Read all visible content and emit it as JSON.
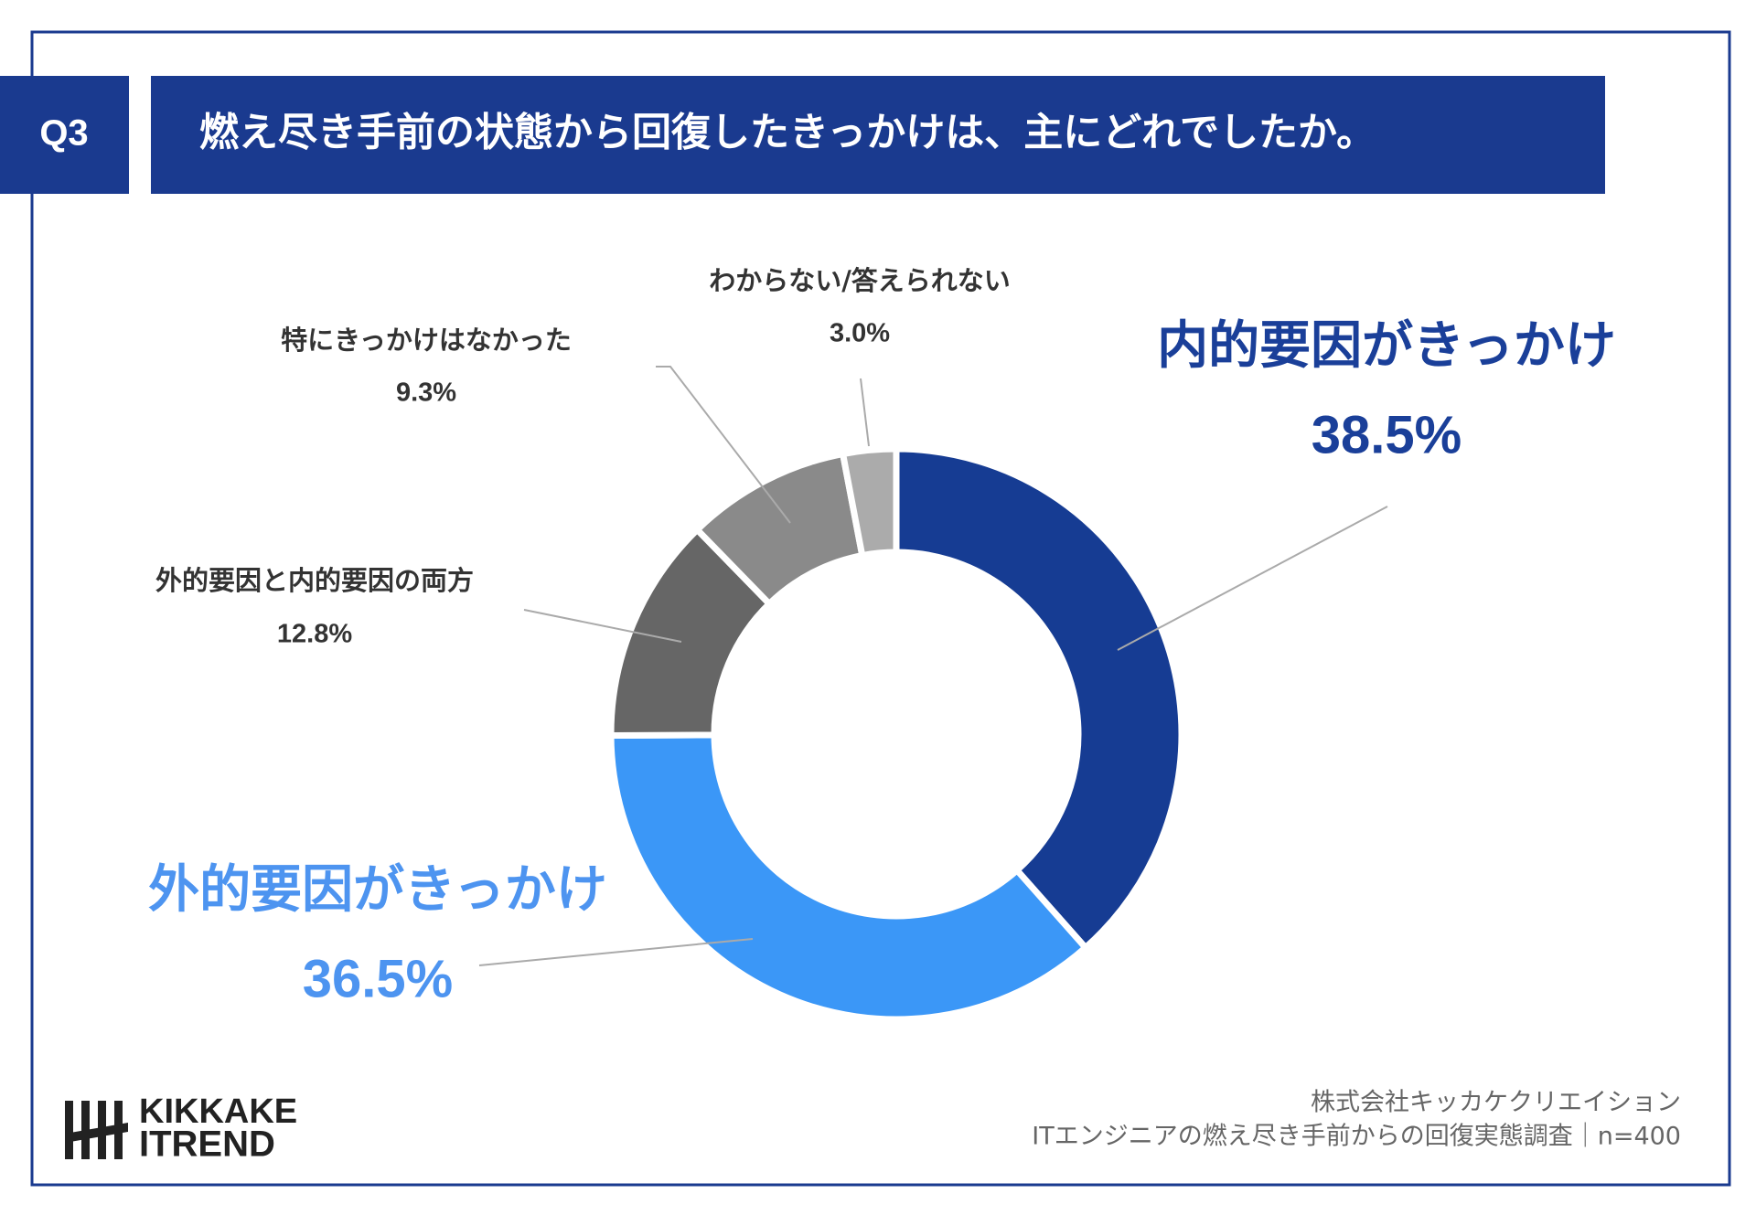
{
  "header": {
    "badge": "Q3",
    "title": "燃え尽き手前の状態から回復したきっかけは、主にどれでしたか。"
  },
  "chart_data": {
    "type": "donut",
    "categories": [
      "内的要因がきっかけ",
      "外的要因がきっかけ",
      "外的要因と内的要因の両方",
      "特にきっかけはなかった",
      "わからない/答えられない"
    ],
    "values": [
      38.5,
      36.5,
      12.8,
      9.3,
      3.0
    ],
    "value_labels": [
      "38.5%",
      "36.5%",
      "12.8%",
      "9.3%",
      "3.0%"
    ],
    "colors": [
      "#163c93",
      "#3b97f7",
      "#666666",
      "#8a8a8a",
      "#ababab"
    ]
  },
  "footer": {
    "company": "株式会社キッカケクリエイション",
    "source": "ITエンジニアの燃え尽き手前からの回復実態調査｜n=400"
  },
  "logo": {
    "line1": "KIKKAKE",
    "line2": "ITREND"
  }
}
